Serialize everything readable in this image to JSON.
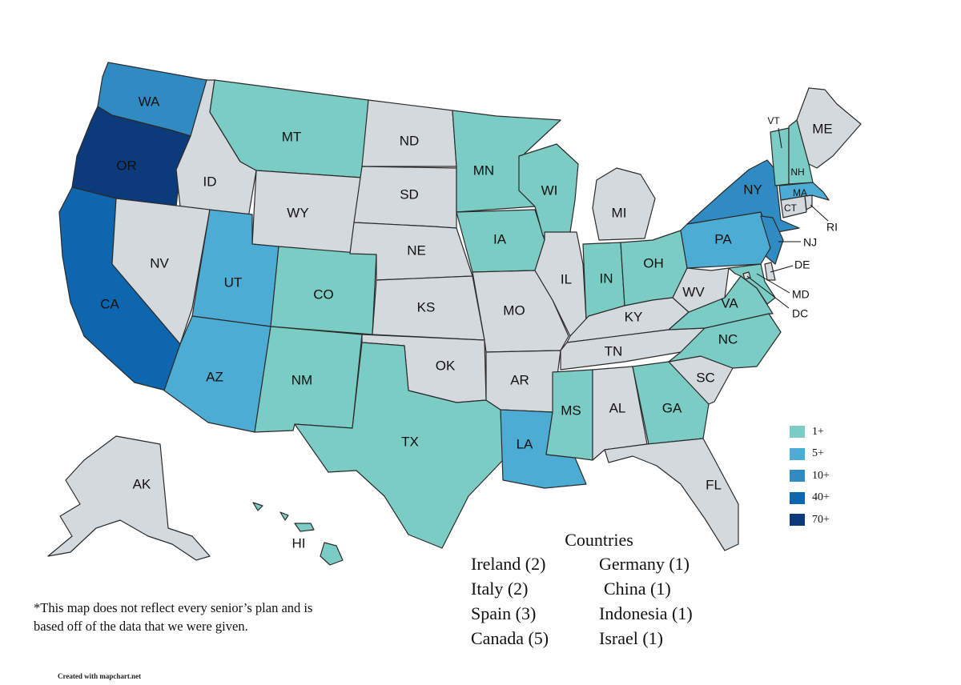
{
  "legend": [
    {
      "label": "1+",
      "color": "#7accc4"
    },
    {
      "label": "5+",
      "color": "#4cacd3"
    },
    {
      "label": "10+",
      "color": "#2f8bc2"
    },
    {
      "label": "40+",
      "color": "#0d66ae"
    },
    {
      "label": "70+",
      "color": "#0c3b7c"
    }
  ],
  "no_data_color": "#d4d9dd",
  "states": [
    {
      "code": "WA",
      "tier": 2
    },
    {
      "code": "OR",
      "tier": 4
    },
    {
      "code": "CA",
      "tier": 3
    },
    {
      "code": "ID",
      "tier": -1
    },
    {
      "code": "NV",
      "tier": -1
    },
    {
      "code": "MT",
      "tier": 0
    },
    {
      "code": "WY",
      "tier": -1
    },
    {
      "code": "UT",
      "tier": 1
    },
    {
      "code": "AZ",
      "tier": 1
    },
    {
      "code": "CO",
      "tier": 0
    },
    {
      "code": "NM",
      "tier": 0
    },
    {
      "code": "ND",
      "tier": -1
    },
    {
      "code": "SD",
      "tier": -1
    },
    {
      "code": "NE",
      "tier": -1
    },
    {
      "code": "KS",
      "tier": -1
    },
    {
      "code": "OK",
      "tier": -1
    },
    {
      "code": "TX",
      "tier": 0
    },
    {
      "code": "MN",
      "tier": 0
    },
    {
      "code": "IA",
      "tier": 0
    },
    {
      "code": "MO",
      "tier": -1
    },
    {
      "code": "AR",
      "tier": -1
    },
    {
      "code": "LA",
      "tier": 1
    },
    {
      "code": "WI",
      "tier": 0
    },
    {
      "code": "IL",
      "tier": -1
    },
    {
      "code": "MI",
      "tier": -1
    },
    {
      "code": "IN",
      "tier": 0
    },
    {
      "code": "OH",
      "tier": 0
    },
    {
      "code": "KY",
      "tier": -1
    },
    {
      "code": "TN",
      "tier": -1
    },
    {
      "code": "MS",
      "tier": 0
    },
    {
      "code": "AL",
      "tier": -1
    },
    {
      "code": "GA",
      "tier": 0
    },
    {
      "code": "FL",
      "tier": -1
    },
    {
      "code": "SC",
      "tier": -1
    },
    {
      "code": "NC",
      "tier": 0
    },
    {
      "code": "VA",
      "tier": 0
    },
    {
      "code": "WV",
      "tier": -1
    },
    {
      "code": "PA",
      "tier": 1
    },
    {
      "code": "NY",
      "tier": 2
    },
    {
      "code": "NJ",
      "tier": 2
    },
    {
      "code": "DE",
      "tier": -1
    },
    {
      "code": "MD",
      "tier": 0
    },
    {
      "code": "DC",
      "tier": -1
    },
    {
      "code": "CT",
      "tier": -1
    },
    {
      "code": "RI",
      "tier": -1
    },
    {
      "code": "MA",
      "tier": 1
    },
    {
      "code": "VT",
      "tier": 0
    },
    {
      "code": "NH",
      "tier": 0
    },
    {
      "code": "ME",
      "tier": -1
    },
    {
      "code": "AK",
      "tier": -1
    },
    {
      "code": "HI",
      "tier": 0
    }
  ],
  "countries": {
    "title": "Countries",
    "left": [
      "Ireland (2)",
      "Italy (2)",
      "Spain (3)",
      "Canada (5)"
    ],
    "right": [
      "Germany (1)",
      "China (1)",
      "Indonesia (1)",
      "Israel (1)"
    ]
  },
  "footnote": "*This map does not reflect every senior’s plan and is based off of the data that we were given.",
  "credit": "Created with mapchart.net"
}
